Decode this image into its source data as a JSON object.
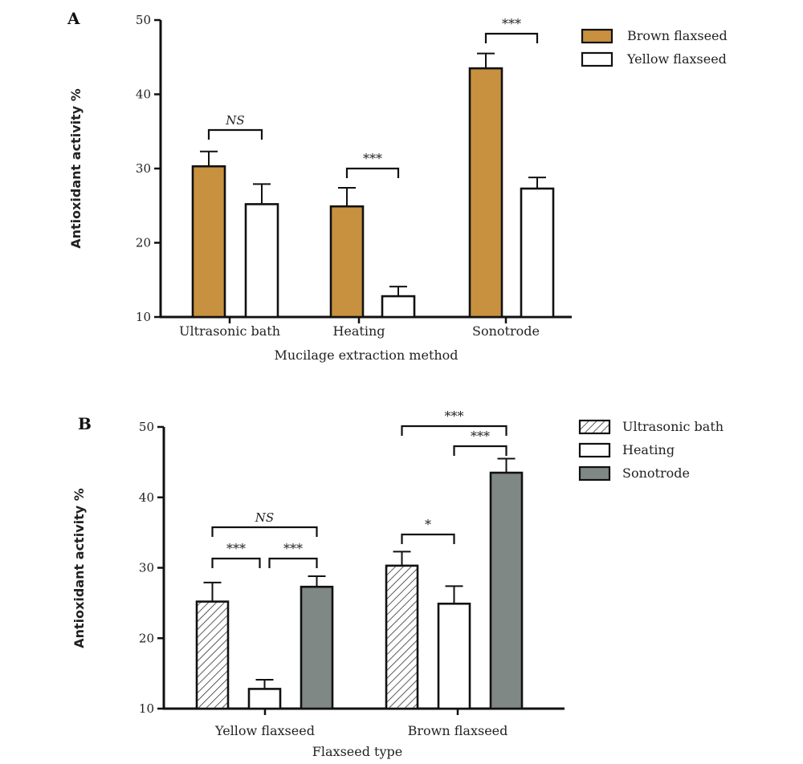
{
  "chart_data": [
    {
      "panel": "A",
      "type": "bar",
      "xlabel": "Mucilage extraction method",
      "ylabel": "Antioxidant activity %",
      "ylim": [
        10,
        50
      ],
      "yticks": [
        10,
        20,
        30,
        40,
        50
      ],
      "categories": [
        "Ultrasonic bath",
        "Heating",
        "Sonotrode"
      ],
      "series": [
        {
          "name": "Brown flaxseed",
          "values": [
            30.3,
            24.9,
            43.5
          ],
          "errors": [
            2.0,
            2.5,
            2.0
          ],
          "fill": "solid",
          "color": "#c8913f"
        },
        {
          "name": "Yellow flaxseed",
          "values": [
            25.2,
            12.8,
            27.3
          ],
          "errors": [
            2.7,
            1.3,
            1.5
          ],
          "fill": "solid",
          "color": "#ffffff"
        }
      ],
      "legend_position": "top-right",
      "significance": [
        {
          "label": "NS",
          "category": 0,
          "from_series": 0,
          "to_series": 1
        },
        {
          "label": "***",
          "category": 1,
          "from_series": 0,
          "to_series": 1
        },
        {
          "label": "***",
          "category": 2,
          "from_series": 0,
          "to_series": 1
        }
      ]
    },
    {
      "panel": "B",
      "type": "bar",
      "xlabel": "Flaxseed type",
      "ylabel": "Antioxidant activity %",
      "ylim": [
        10,
        50
      ],
      "yticks": [
        10,
        20,
        30,
        40,
        50
      ],
      "categories": [
        "Yellow flaxseed",
        "Brown flaxseed"
      ],
      "series": [
        {
          "name": "Ultrasonic bath",
          "values": [
            25.2,
            30.3
          ],
          "errors": [
            2.7,
            2.0
          ],
          "fill": "hatch",
          "color": "#ffffff"
        },
        {
          "name": "Heating",
          "values": [
            12.8,
            24.9
          ],
          "errors": [
            1.3,
            2.5
          ],
          "fill": "solid",
          "color": "#ffffff"
        },
        {
          "name": "Sonotrode",
          "values": [
            27.3,
            43.5
          ],
          "errors": [
            1.5,
            2.0
          ],
          "fill": "solid",
          "color": "#7f8885"
        }
      ],
      "legend_position": "top-right",
      "significance": [
        {
          "label": "NS",
          "category": 0,
          "from_series": 0,
          "to_series": 2
        },
        {
          "label": "***",
          "category": 0,
          "from_series": 0,
          "to_series": 1
        },
        {
          "label": "***",
          "category": 0,
          "from_series": 1,
          "to_series": 2
        },
        {
          "label": "***",
          "category": 1,
          "from_series": 0,
          "to_series": 2
        },
        {
          "label": "***",
          "category": 1,
          "from_series": 1,
          "to_series": 2
        },
        {
          "label": "*",
          "category": 1,
          "from_series": 0,
          "to_series": 1
        }
      ]
    }
  ]
}
